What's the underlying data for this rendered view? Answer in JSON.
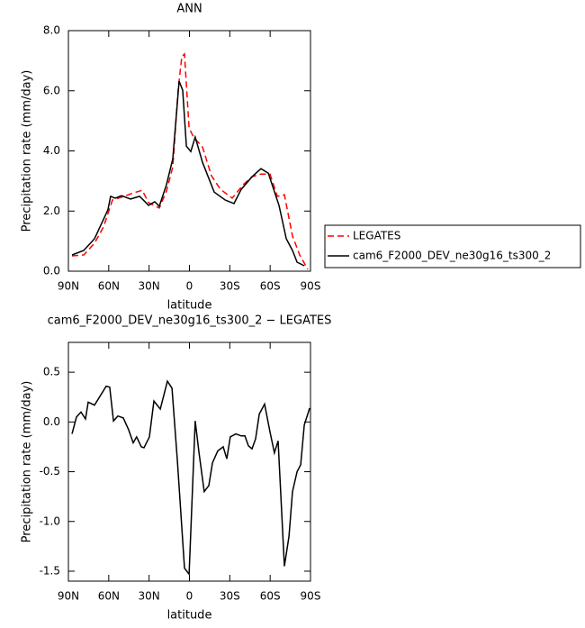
{
  "chart_data": [
    {
      "type": "line",
      "title": "ANN",
      "xlabel": "latitude",
      "ylabel": "Precipitation rate (mm/day)",
      "xlim": [
        90,
        -90
      ],
      "ylim": [
        0,
        8
      ],
      "xticks": [
        {
          "value": 90,
          "label": "90N"
        },
        {
          "value": 60,
          "label": "60N"
        },
        {
          "value": 30,
          "label": "30N"
        },
        0,
        {
          "value": -30,
          "label": "30S"
        },
        {
          "value": -60,
          "label": "60S"
        },
        {
          "value": -90,
          "label": "90S"
        }
      ],
      "yticks": [
        {
          "value": 0,
          "label": "0.0"
        },
        {
          "value": 2,
          "label": "2.0"
        },
        {
          "value": 4,
          "label": "4.0"
        },
        {
          "value": 6,
          "label": "6.0"
        },
        {
          "value": 8,
          "label": "8.0"
        }
      ],
      "legend": "right",
      "series": [
        {
          "name": "LEGATES",
          "color": "#ff0000",
          "dashed": true,
          "x": [
            87.3,
            78.6,
            70.6,
            63.9,
            57.2,
            50.5,
            41.8,
            35.1,
            30.4,
            22.4,
            17.1,
            12.4,
            8.4,
            5.7,
            3.7,
            0.3,
            -3.0,
            -9.7,
            -16.4,
            -23.1,
            -31.8,
            -39.8,
            -46.5,
            -53.2,
            -59.9,
            -65.3,
            -70.6,
            -76.6,
            -82.0,
            -88.0
          ],
          "values": [
            0.51,
            0.54,
            0.93,
            1.47,
            2.37,
            2.46,
            2.6,
            2.69,
            2.28,
            2.1,
            2.66,
            3.47,
            6.02,
            7.13,
            7.22,
            4.76,
            4.46,
            4.13,
            3.17,
            2.72,
            2.43,
            2.87,
            3.14,
            3.23,
            3.23,
            2.49,
            2.54,
            1.17,
            0.54,
            0.06
          ]
        },
        {
          "name": "cam6_F2000_DEV_ne30g16_ts300_2",
          "color": "#000000",
          "dashed": false,
          "x": [
            87.3,
            78.6,
            70.6,
            60.6,
            58.6,
            55.2,
            50.5,
            43.8,
            37.1,
            30.4,
            25.8,
            22.4,
            17.1,
            12.4,
            7.7,
            5.0,
            2.3,
            -1.0,
            -4.3,
            -9.7,
            -18.4,
            -26.4,
            -33.1,
            -38.5,
            -46.5,
            -53.2,
            -58.6,
            -66.6,
            -72.0,
            -76.6,
            -80.0,
            -85.4
          ],
          "values": [
            0.54,
            0.69,
            1.08,
            2.04,
            2.49,
            2.43,
            2.51,
            2.4,
            2.49,
            2.19,
            2.31,
            2.16,
            2.87,
            3.74,
            6.32,
            6.02,
            4.16,
            3.98,
            4.46,
            3.62,
            2.63,
            2.37,
            2.25,
            2.72,
            3.14,
            3.41,
            3.26,
            2.19,
            1.08,
            0.69,
            0.3,
            0.18
          ]
        }
      ]
    },
    {
      "type": "line",
      "title": "cam6_F2000_DEV_ne30g16_ts300_2 − LEGATES",
      "xlabel": "latitude",
      "ylabel": "Precipitation rate (mm/day)",
      "xlim": [
        90,
        -90
      ],
      "ylim": [
        -1.6,
        0.8
      ],
      "xticks": [
        {
          "value": 90,
          "label": "90N"
        },
        {
          "value": 60,
          "label": "60N"
        },
        {
          "value": 30,
          "label": "30N"
        },
        0,
        {
          "value": -30,
          "label": "30S"
        },
        {
          "value": -60,
          "label": "60S"
        },
        {
          "value": -90,
          "label": "90S"
        }
      ],
      "yticks": [
        -1.5,
        {
          "value": -1,
          "label": "-1.0"
        },
        -0.5,
        {
          "value": 0,
          "label": "0.0"
        },
        0.5
      ],
      "color": "#000000",
      "x": [
        87.3,
        84.0,
        80.6,
        77.3,
        75.3,
        70.6,
        61.9,
        59.3,
        56.5,
        53.2,
        49.2,
        45.2,
        41.8,
        39.3,
        35.8,
        33.8,
        29.8,
        26.4,
        21.7,
        16.4,
        13.0,
        9.0,
        3.7,
        0.3,
        -4.3,
        -7.0,
        -11.0,
        -14.4,
        -17.1,
        -21.1,
        -25.1,
        -27.8,
        -30.4,
        -34.5,
        -38.5,
        -41.2,
        -43.8,
        -46.5,
        -49.2,
        -51.9,
        -55.9,
        -59.9,
        -63.2,
        -65.9,
        -70.6,
        -74.0,
        -76.6,
        -80.0,
        -82.7,
        -85.4,
        -89.4
      ],
      "values": [
        -0.12,
        0.05,
        0.1,
        0.03,
        0.2,
        0.17,
        0.36,
        0.35,
        0.01,
        0.06,
        0.04,
        -0.08,
        -0.21,
        -0.15,
        -0.25,
        -0.26,
        -0.15,
        0.21,
        0.13,
        0.41,
        0.34,
        -0.39,
        -1.47,
        -1.53,
        0.01,
        -0.3,
        -0.7,
        -0.64,
        -0.41,
        -0.29,
        -0.25,
        -0.37,
        -0.15,
        -0.12,
        -0.14,
        -0.14,
        -0.24,
        -0.27,
        -0.17,
        0.08,
        0.18,
        -0.1,
        -0.31,
        -0.19,
        -1.45,
        -1.15,
        -0.7,
        -0.5,
        -0.43,
        -0.03,
        0.14
      ]
    }
  ]
}
